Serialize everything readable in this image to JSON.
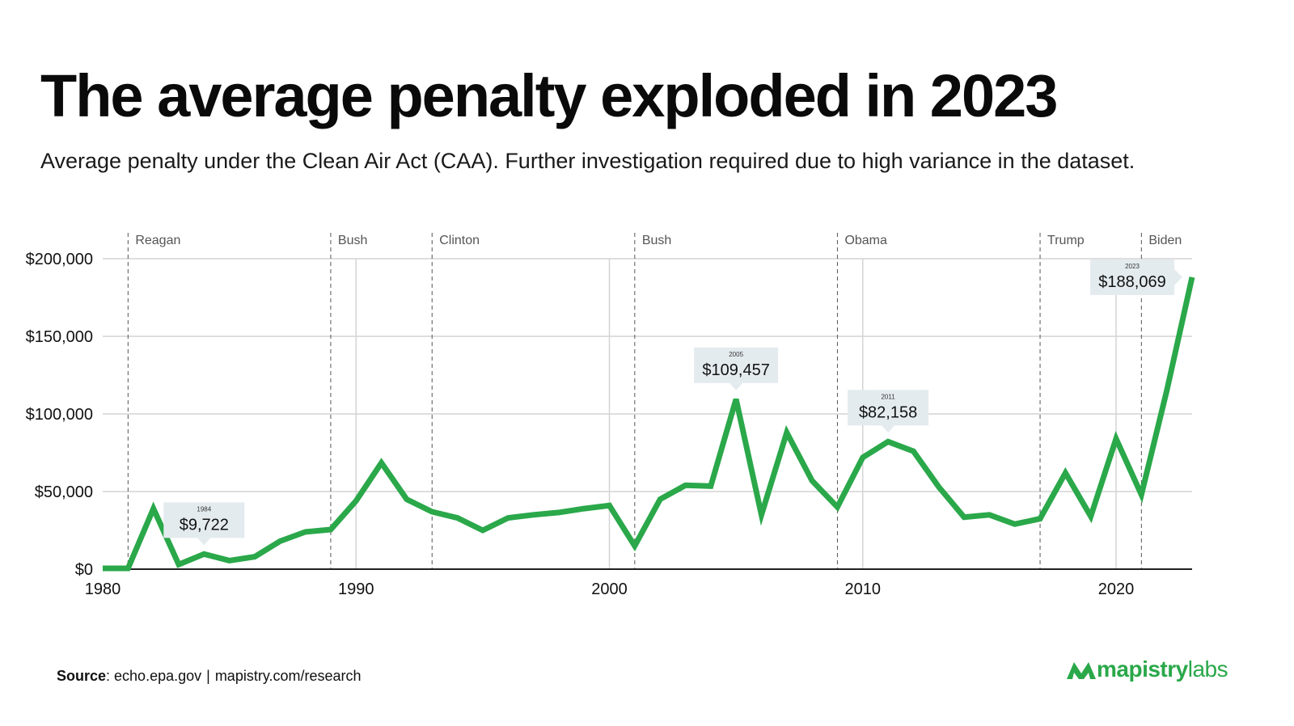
{
  "header": {
    "title": "The average penalty exploded in 2023",
    "subtitle": "Average penalty under the Clean Air Act (CAA). Further investigation required due to high variance in the dataset."
  },
  "footer": {
    "source_label": "Source",
    "source_text": ": echo.epa.gov",
    "source_link": "mapistry.com/research",
    "brand_primary": "mapistry",
    "brand_secondary": "labs"
  },
  "colors": {
    "line": "#2aa84a",
    "grid": "#d4d4d4",
    "callout_bg": "#e4ebef",
    "brand": "#2aa84a"
  },
  "chart_data": {
    "type": "line",
    "title": "The average penalty exploded in 2023",
    "xlabel": "",
    "ylabel": "",
    "xlim": [
      1980,
      2023
    ],
    "ylim": [
      0,
      200000
    ],
    "x_ticks": [
      1980,
      1990,
      2000,
      2010,
      2020
    ],
    "y_ticks": [
      {
        "value": 0,
        "label": "$0"
      },
      {
        "value": 50000,
        "label": "$50,000"
      },
      {
        "value": 100000,
        "label": "$100,000"
      },
      {
        "value": 150000,
        "label": "$150,000"
      },
      {
        "value": 200000,
        "label": "$200,000"
      }
    ],
    "grid": true,
    "legend": "none",
    "series": [
      {
        "x": [
          1980,
          1981,
          1982,
          1983,
          1984,
          1985,
          1986,
          1987,
          1988,
          1989,
          1990,
          1991,
          1992,
          1993,
          1994,
          1995,
          1996,
          1997,
          1998,
          1999,
          2000,
          2001,
          2002,
          2003,
          2004,
          2005,
          2006,
          2007,
          2008,
          2009,
          2010,
          2011,
          2012,
          2013,
          2014,
          2015,
          2016,
          2017,
          2018,
          2019,
          2020,
          2021,
          2022,
          2023
        ],
        "values": [
          500,
          500,
          39000,
          3000,
          9722,
          5500,
          8000,
          18000,
          24000,
          25500,
          44000,
          68500,
          45000,
          37000,
          33000,
          25000,
          33000,
          35000,
          36500,
          39000,
          41000,
          15000,
          45000,
          54000,
          53500,
          109457,
          35000,
          88000,
          57000,
          40000,
          72000,
          82158,
          76000,
          53000,
          33500,
          35000,
          29000,
          32500,
          62000,
          34000,
          84000,
          48000,
          115000,
          188069
        ]
      }
    ],
    "eras": [
      {
        "year": 1981,
        "label": "Reagan"
      },
      {
        "year": 1989,
        "label": "Bush"
      },
      {
        "year": 1993,
        "label": "Clinton"
      },
      {
        "year": 2001,
        "label": "Bush"
      },
      {
        "year": 2009,
        "label": "Obama"
      },
      {
        "year": 2017,
        "label": "Trump"
      },
      {
        "year": 2021,
        "label": "Biden"
      }
    ],
    "annotations": [
      {
        "year": 1984,
        "year_label": "1984",
        "value": 9722,
        "label": "$9,722",
        "direction": "down"
      },
      {
        "year": 2005,
        "year_label": "2005",
        "value": 109457,
        "label": "$109,457",
        "direction": "down"
      },
      {
        "year": 2011,
        "year_label": "2011",
        "value": 82158,
        "label": "$82,158",
        "direction": "down"
      },
      {
        "year": 2023,
        "year_label": "2023",
        "value": 188069,
        "label": "$188,069",
        "direction": "right"
      }
    ]
  }
}
